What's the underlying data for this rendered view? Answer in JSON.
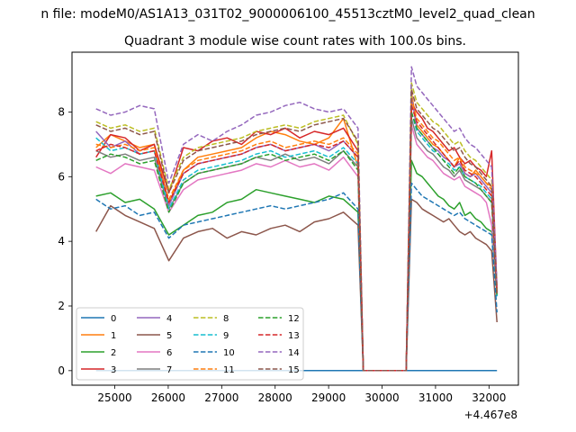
{
  "figure": {
    "suptitle": "n file: modeM0/AS1A13_031T02_9000006100_45513cztM0_level2_quad_clean",
    "offset_label": "+4.467e8"
  },
  "chart_data": {
    "type": "line",
    "title": "Quadrant 3 module wise count rates with 100.0s bins.",
    "xlabel": "",
    "ylabel": "",
    "xlim": [
      24200,
      32550
    ],
    "ylim": [
      -0.45,
      9.85
    ],
    "xticks": [
      25000,
      26000,
      27000,
      28000,
      29000,
      30000,
      31000,
      32000
    ],
    "yticks": [
      0,
      2,
      4,
      6,
      8
    ],
    "grid": false,
    "legend": {
      "placement": "lower-left",
      "columns": 4
    },
    "segments": [
      {
        "start": 24650,
        "end": 29550
      },
      {
        "start": 30550,
        "end": 32150
      }
    ],
    "gap": {
      "start": 29650,
      "end": 30450,
      "value": 0
    },
    "series": [
      {
        "name": "0",
        "color": "#1f77b4",
        "dash": "solid",
        "a": [
          0
        ],
        "b": [
          0
        ]
      },
      {
        "name": "1",
        "color": "#ff7f0e",
        "dash": "solid",
        "a": [
          6.9,
          7.3,
          7.1,
          6.9,
          7.0,
          5.2,
          6.2,
          6.6,
          6.7,
          6.8,
          6.9,
          7.2,
          7.4,
          7.3,
          7.1,
          7.0,
          7.2,
          7.8,
          6.3
        ],
        "b": [
          8.6,
          7.6,
          7.4,
          7.2,
          7.0,
          6.9,
          6.7,
          6.5,
          6.3,
          6.6,
          6.1,
          6.0,
          6.2,
          6.0,
          5.8,
          5.7,
          2.6
        ]
      },
      {
        "name": "2",
        "color": "#2ca02c",
        "dash": "solid",
        "a": [
          5.4,
          5.5,
          5.2,
          5.3,
          5.0,
          4.2,
          4.5,
          4.8,
          4.9,
          5.2,
          5.3,
          5.6,
          5.5,
          5.4,
          5.3,
          5.2,
          5.4,
          5.3,
          4.9
        ],
        "b": [
          6.5,
          6.1,
          6.0,
          5.8,
          5.6,
          5.4,
          5.3,
          5.1,
          5.0,
          5.2,
          4.8,
          4.9,
          4.7,
          4.6,
          4.4,
          4.3,
          2.4
        ]
      },
      {
        "name": "3",
        "color": "#d62728",
        "dash": "solid",
        "a": [
          6.6,
          7.3,
          7.2,
          6.8,
          7.0,
          5.5,
          6.9,
          6.8,
          7.1,
          7.2,
          7.0,
          7.4,
          7.3,
          7.5,
          7.2,
          7.4,
          7.3,
          7.5,
          6.8
        ],
        "b": [
          8.3,
          8.0,
          7.8,
          7.5,
          7.4,
          7.2,
          7.0,
          6.8,
          6.9,
          6.6,
          6.4,
          6.5,
          6.3,
          6.2,
          6.0,
          6.8,
          2.5
        ]
      },
      {
        "name": "4",
        "color": "#9467bd",
        "dash": "solid",
        "a": [
          7.4,
          6.9,
          7.1,
          6.7,
          6.8,
          5.1,
          6.1,
          6.4,
          6.5,
          6.6,
          6.7,
          6.9,
          7.0,
          6.8,
          6.9,
          7.0,
          6.8,
          7.1,
          6.6
        ],
        "b": [
          8.5,
          7.5,
          7.3,
          7.1,
          6.9,
          6.8,
          6.6,
          6.5,
          6.3,
          6.4,
          6.1,
          6.0,
          6.1,
          5.9,
          5.7,
          5.5,
          2.3
        ]
      },
      {
        "name": "5",
        "color": "#8c564b",
        "dash": "solid",
        "a": [
          4.3,
          5.1,
          4.8,
          4.6,
          4.4,
          3.4,
          4.1,
          4.3,
          4.4,
          4.1,
          4.3,
          4.2,
          4.4,
          4.5,
          4.3,
          4.6,
          4.7,
          4.9,
          4.5
        ],
        "b": [
          5.3,
          5.2,
          5.0,
          4.9,
          4.8,
          4.7,
          4.6,
          4.7,
          4.5,
          4.3,
          4.2,
          4.3,
          4.1,
          4.0,
          3.9,
          3.7,
          1.5
        ]
      },
      {
        "name": "6",
        "color": "#e377c2",
        "dash": "solid",
        "a": [
          6.3,
          6.1,
          6.4,
          6.3,
          6.2,
          4.9,
          5.6,
          5.9,
          6.0,
          6.1,
          6.2,
          6.4,
          6.3,
          6.5,
          6.3,
          6.4,
          6.2,
          6.6,
          6.0
        ],
        "b": [
          7.6,
          7.0,
          6.8,
          6.6,
          6.5,
          6.3,
          6.1,
          6.0,
          5.9,
          6.0,
          5.7,
          5.6,
          5.5,
          5.4,
          5.2,
          4.5,
          2.4
        ]
      },
      {
        "name": "7",
        "color": "#7f7f7f",
        "dash": "solid",
        "a": [
          6.8,
          6.6,
          6.7,
          6.5,
          6.6,
          5.0,
          5.8,
          6.1,
          6.2,
          6.3,
          6.4,
          6.6,
          6.5,
          6.7,
          6.5,
          6.6,
          6.4,
          6.8,
          6.3
        ],
        "b": [
          7.8,
          7.2,
          7.0,
          6.8,
          6.7,
          6.5,
          6.3,
          6.2,
          6.0,
          6.2,
          5.9,
          5.8,
          5.7,
          5.6,
          5.4,
          5.2,
          2.4
        ]
      },
      {
        "name": "8",
        "color": "#bcbd22",
        "dash": "dashed",
        "a": [
          7.7,
          7.5,
          7.6,
          7.4,
          7.5,
          5.6,
          6.6,
          6.9,
          7.0,
          7.1,
          7.2,
          7.4,
          7.5,
          7.6,
          7.5,
          7.7,
          7.8,
          7.9,
          7.0
        ],
        "b": [
          8.9,
          8.3,
          8.1,
          7.9,
          7.7,
          7.6,
          7.4,
          7.2,
          7.0,
          7.1,
          6.8,
          6.6,
          6.5,
          6.3,
          6.1,
          5.9,
          2.5
        ]
      },
      {
        "name": "9",
        "color": "#17becf",
        "dash": "dashed",
        "a": [
          7.2,
          6.8,
          6.9,
          6.7,
          6.8,
          5.0,
          5.9,
          6.2,
          6.3,
          6.4,
          6.5,
          6.7,
          6.8,
          6.6,
          6.7,
          6.8,
          6.6,
          6.9,
          6.4
        ],
        "b": [
          8.0,
          7.4,
          7.2,
          7.0,
          6.8,
          6.7,
          6.5,
          6.4,
          6.2,
          6.3,
          6.0,
          5.9,
          5.8,
          5.7,
          5.5,
          5.3,
          2.3
        ]
      },
      {
        "name": "10",
        "color": "#1f77b4",
        "dash": "dashed",
        "a": [
          5.3,
          5.0,
          5.1,
          4.8,
          4.9,
          4.1,
          4.5,
          4.6,
          4.7,
          4.8,
          4.9,
          5.0,
          5.1,
          5.0,
          5.1,
          5.2,
          5.3,
          5.5,
          5.0
        ],
        "b": [
          5.8,
          5.6,
          5.4,
          5.3,
          5.2,
          5.1,
          5.0,
          4.9,
          4.8,
          4.9,
          4.7,
          4.6,
          4.5,
          4.4,
          4.3,
          4.2,
          1.8
        ]
      },
      {
        "name": "11",
        "color": "#ff7f0e",
        "dash": "dashed",
        "a": [
          7.0,
          6.9,
          7.0,
          6.8,
          6.9,
          5.3,
          6.2,
          6.5,
          6.6,
          6.7,
          6.8,
          7.0,
          7.1,
          6.9,
          7.0,
          7.1,
          7.0,
          7.2,
          6.7
        ],
        "b": [
          8.4,
          7.8,
          7.6,
          7.4,
          7.2,
          7.1,
          6.9,
          6.7,
          6.5,
          6.6,
          6.3,
          6.2,
          6.1,
          6.0,
          5.8,
          5.6,
          2.4
        ]
      },
      {
        "name": "12",
        "color": "#2ca02c",
        "dash": "dashed",
        "a": [
          6.5,
          6.7,
          6.6,
          6.4,
          6.5,
          4.9,
          5.8,
          6.1,
          6.2,
          6.3,
          6.4,
          6.6,
          6.7,
          6.5,
          6.6,
          6.7,
          6.5,
          6.8,
          6.2
        ],
        "b": [
          8.0,
          7.5,
          7.3,
          7.1,
          6.9,
          6.7,
          6.5,
          6.3,
          6.1,
          6.3,
          6.0,
          5.9,
          5.8,
          5.6,
          5.4,
          5.2,
          2.3
        ]
      },
      {
        "name": "13",
        "color": "#d62728",
        "dash": "dashed",
        "a": [
          6.8,
          7.0,
          6.9,
          6.7,
          6.8,
          5.2,
          6.1,
          6.4,
          6.5,
          6.6,
          6.7,
          6.9,
          7.0,
          6.8,
          6.9,
          7.0,
          6.9,
          7.1,
          6.6
        ],
        "b": [
          8.2,
          7.7,
          7.5,
          7.3,
          7.1,
          6.9,
          6.7,
          6.5,
          6.3,
          6.5,
          6.2,
          6.1,
          6.0,
          5.8,
          5.6,
          5.4,
          2.4
        ]
      },
      {
        "name": "14",
        "color": "#9467bd",
        "dash": "dashed",
        "a": [
          8.1,
          7.9,
          8.0,
          8.2,
          8.1,
          5.8,
          7.0,
          7.3,
          7.1,
          7.4,
          7.6,
          7.9,
          8.0,
          8.2,
          8.3,
          8.1,
          8.0,
          8.1,
          7.5
        ],
        "b": [
          9.4,
          8.8,
          8.6,
          8.4,
          8.2,
          8.0,
          7.8,
          7.6,
          7.4,
          7.5,
          7.2,
          7.0,
          6.9,
          6.7,
          6.5,
          6.3,
          2.6
        ]
      },
      {
        "name": "15",
        "color": "#8c564b",
        "dash": "dashed",
        "a": [
          7.6,
          7.4,
          7.5,
          7.3,
          7.4,
          5.5,
          6.5,
          6.8,
          6.9,
          7.0,
          7.1,
          7.3,
          7.4,
          7.5,
          7.4,
          7.6,
          7.7,
          7.8,
          7.1
        ],
        "b": [
          8.7,
          8.1,
          7.9,
          7.7,
          7.5,
          7.4,
          7.2,
          7.0,
          6.8,
          6.9,
          6.6,
          6.4,
          6.3,
          6.1,
          5.9,
          5.7,
          2.4
        ]
      }
    ]
  }
}
